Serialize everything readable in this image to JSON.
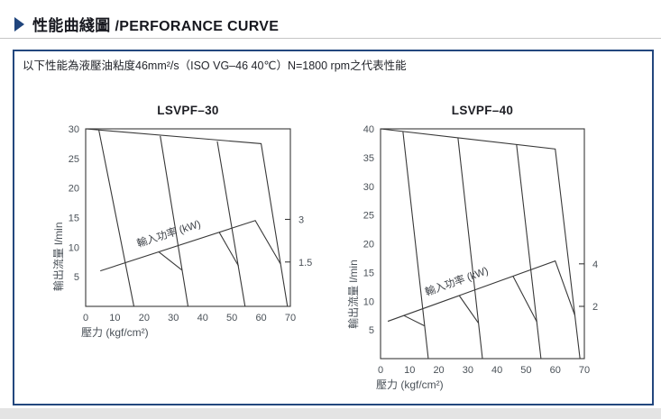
{
  "page": {
    "title_cn": "性能曲綫圖",
    "title_en": "/PERFORANCE CURVE",
    "subtitle": "以下性能為液壓油粘度46mm²/s（ISO VG–46 40℃）N=1800 rpm之代表性能",
    "colors": {
      "accent_navy": "#23477e",
      "curve_line": "#383838",
      "tick_text": "#4a5158",
      "title_text": "#17181f"
    }
  },
  "chart_data": [
    {
      "type": "line",
      "title": "LSVPF–30",
      "xlabel": "壓力 (kgf/cm²)",
      "ylabel": "輸出流量 l/min",
      "y2label": "輸入功率 (kW)",
      "xlim": [
        0,
        70
      ],
      "ylim": [
        0,
        30
      ],
      "x_ticks": [
        0,
        10,
        20,
        30,
        40,
        50,
        60,
        70
      ],
      "y_ticks": [
        5,
        10,
        15,
        20,
        25,
        30
      ],
      "y2_ticks": [
        {
          "label": "3",
          "at_flow": 14.7
        },
        {
          "label": "1.5",
          "at_flow": 7.5
        }
      ],
      "series": [
        {
          "name": "flow-envelope",
          "points": [
            [
              0,
              30
            ],
            [
              60,
              27.5
            ],
            [
              69,
              0
            ]
          ]
        },
        {
          "name": "cutoff-line-1",
          "points": [
            [
              4.5,
              29.8
            ],
            [
              16.5,
              0
            ]
          ]
        },
        {
          "name": "cutoff-line-2",
          "points": [
            [
              25.5,
              28.8
            ],
            [
              35,
              0
            ]
          ]
        },
        {
          "name": "cutoff-line-3",
          "points": [
            [
              45,
              27.9
            ],
            [
              54.5,
              0
            ]
          ]
        },
        {
          "name": "power-curve",
          "points": [
            [
              5,
              6
            ],
            [
              58,
              14.5
            ],
            [
              66.6,
              7.2
            ]
          ]
        },
        {
          "name": "power-notch-2",
          "points": [
            [
              25,
              9.2
            ],
            [
              33,
              6.1
            ]
          ]
        },
        {
          "name": "power-notch-3",
          "points": [
            [
              45.7,
              12.5
            ],
            [
              52.3,
              6.8
            ]
          ]
        }
      ],
      "grid": false,
      "legend": "none"
    },
    {
      "type": "line",
      "title": "LSVPF–40",
      "xlabel": "壓力 (kgf/cm²)",
      "ylabel": "輸出流量 l/min",
      "y2label": "輸入功率 (kW)",
      "xlim": [
        0,
        70
      ],
      "ylim": [
        0,
        40
      ],
      "x_ticks": [
        0,
        10,
        20,
        30,
        40,
        50,
        60,
        70
      ],
      "y_ticks": [
        5,
        10,
        15,
        20,
        25,
        30,
        35,
        40
      ],
      "y2_ticks": [
        {
          "label": "4",
          "at_flow": 16.5
        },
        {
          "label": "2",
          "at_flow": 9.1
        }
      ],
      "series": [
        {
          "name": "flow-envelope",
          "points": [
            [
              0,
              40
            ],
            [
              60,
              36.5
            ],
            [
              68.5,
              0
            ]
          ]
        },
        {
          "name": "cutoff-line-1",
          "points": [
            [
              7.7,
              39.5
            ],
            [
              16.4,
              0
            ]
          ]
        },
        {
          "name": "cutoff-line-2",
          "points": [
            [
              26.6,
              38.4
            ],
            [
              35,
              0
            ]
          ]
        },
        {
          "name": "cutoff-line-3",
          "points": [
            [
              46.7,
              37.3
            ],
            [
              55.1,
              0
            ]
          ]
        },
        {
          "name": "power-curve",
          "points": [
            [
              2.5,
              6.5
            ],
            [
              60,
              17
            ],
            [
              66.7,
              7.6
            ]
          ]
        },
        {
          "name": "power-notch-1",
          "points": [
            [
              8,
              7.5
            ],
            [
              15.1,
              5.7
            ]
          ]
        },
        {
          "name": "power-notch-2",
          "points": [
            [
              27,
              11
            ],
            [
              33.6,
              6.2
            ]
          ]
        },
        {
          "name": "power-notch-3",
          "points": [
            [
              45.5,
              14.35
            ],
            [
              53.7,
              6.4
            ]
          ]
        }
      ],
      "grid": false,
      "legend": "none"
    }
  ]
}
